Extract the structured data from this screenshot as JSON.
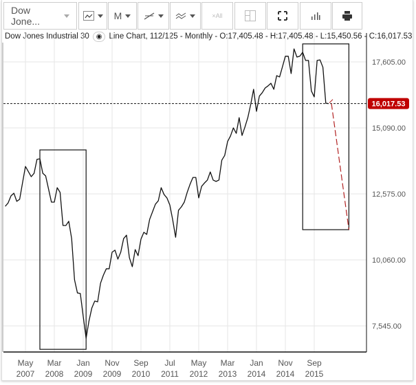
{
  "toolbar": {
    "symbol_select": "Dow Jone...",
    "chart_type_icon": "line-chart-icon",
    "period_select": "M",
    "drawing_tools_icon": "trendline-icon",
    "indicators_icon": "indicators-icon",
    "clear_all_label": "×All",
    "crosshair_icon": "crosshair-icon",
    "fullscreen_icon": "expand-icon",
    "volume_icon": "bar-chart-icon",
    "print_icon": "printer-icon"
  },
  "info": {
    "name": "Dow Jones Industrial 30",
    "eye_icon": "eye-icon",
    "details": "Line Chart, 112/125 - Monthly - O:17,405.48 - H:17,405.48 - L:15,450.56 - C:16,017.53"
  },
  "colors": {
    "line": "#111111",
    "projection": "#b22222",
    "price_badge": "#c00000",
    "grid": "#e6e6e6"
  },
  "chart_data": {
    "type": "line",
    "title": "",
    "xlabel": "",
    "ylabel": "",
    "x_ticks": [
      {
        "date": "2007-05",
        "label": [
          "May",
          "2007"
        ]
      },
      {
        "date": "2008-03",
        "label": [
          "Mar",
          "2008"
        ]
      },
      {
        "date": "2009-01",
        "label": [
          "Jan",
          "2009"
        ]
      },
      {
        "date": "2009-11",
        "label": [
          "Nov",
          "2009"
        ]
      },
      {
        "date": "2010-09",
        "label": [
          "Sep",
          "2010"
        ]
      },
      {
        "date": "2011-07",
        "label": [
          "Jul",
          "2011"
        ]
      },
      {
        "date": "2012-05",
        "label": [
          "May",
          "2012"
        ]
      },
      {
        "date": "2013-03",
        "label": [
          "Mar",
          "2013"
        ]
      },
      {
        "date": "2014-01",
        "label": [
          "Jan",
          "2014"
        ]
      },
      {
        "date": "2014-11",
        "label": [
          "Nov",
          "2014"
        ]
      },
      {
        "date": "2015-09",
        "label": [
          "Sep",
          "2015"
        ]
      }
    ],
    "y_ticks": [
      "17,605.00",
      "15,090.00",
      "12,575.00",
      "10,060.00",
      "7,545.00"
    ],
    "y_tick_values": [
      17605,
      15090,
      12575,
      10060,
      7545
    ],
    "ylim": [
      6550,
      18700
    ],
    "xlim": [
      "2006-10",
      "2017-03"
    ],
    "grid": true,
    "current_price": {
      "value": 16017.53,
      "label": "16,017.53"
    },
    "series": [
      {
        "points": [
          [
            "2006-10",
            12100
          ],
          [
            "2006-11",
            12230
          ],
          [
            "2006-12",
            12500
          ],
          [
            "2007-01",
            12600
          ],
          [
            "2007-02",
            12290
          ],
          [
            "2007-03",
            12370
          ],
          [
            "2007-04",
            13000
          ],
          [
            "2007-05",
            13620
          ],
          [
            "2007-07",
            13230
          ],
          [
            "2007-08",
            13360
          ],
          [
            "2007-09",
            13890
          ],
          [
            "2007-10",
            13910
          ],
          [
            "2007-11",
            13360
          ],
          [
            "2007-12",
            13260
          ],
          [
            "2008-01",
            12760
          ],
          [
            "2008-02",
            12260
          ],
          [
            "2008-03",
            12260
          ],
          [
            "2008-04",
            12810
          ],
          [
            "2008-05",
            12630
          ],
          [
            "2008-06",
            11370
          ],
          [
            "2008-07",
            11370
          ],
          [
            "2008-08",
            11530
          ],
          [
            "2008-09",
            10870
          ],
          [
            "2008-10",
            9300
          ],
          [
            "2008-11",
            8800
          ],
          [
            "2008-12",
            8780
          ],
          [
            "2009-01",
            7910
          ],
          [
            "2009-02",
            7070
          ],
          [
            "2009-03",
            7730
          ],
          [
            "2009-04",
            8230
          ],
          [
            "2009-05",
            8490
          ],
          [
            "2009-06",
            8460
          ],
          [
            "2009-07",
            9170
          ],
          [
            "2009-08",
            9480
          ],
          [
            "2009-09",
            9720
          ],
          [
            "2009-10",
            9720
          ],
          [
            "2009-11",
            10350
          ],
          [
            "2009-12",
            10430
          ],
          [
            "2010-01",
            10090
          ],
          [
            "2010-02",
            10350
          ],
          [
            "2010-03",
            10870
          ],
          [
            "2010-04",
            11000
          ],
          [
            "2010-05",
            10140
          ],
          [
            "2010-06",
            9800
          ],
          [
            "2010-07",
            10450
          ],
          [
            "2010-08",
            10220
          ],
          [
            "2010-09",
            10850
          ],
          [
            "2010-10",
            11110
          ],
          [
            "2010-11",
            11030
          ],
          [
            "2010-12",
            11600
          ],
          [
            "2011-01",
            11890
          ],
          [
            "2011-02",
            12180
          ],
          [
            "2011-03",
            12310
          ],
          [
            "2011-04",
            12810
          ],
          [
            "2011-05",
            12550
          ],
          [
            "2011-06",
            12420
          ],
          [
            "2011-07",
            12150
          ],
          [
            "2011-08",
            11580
          ],
          [
            "2011-09",
            10920
          ],
          [
            "2011-10",
            11950
          ],
          [
            "2011-11",
            12080
          ],
          [
            "2011-12",
            12260
          ],
          [
            "2012-01",
            12630
          ],
          [
            "2012-02",
            12940
          ],
          [
            "2012-03",
            13200
          ],
          [
            "2012-04",
            13200
          ],
          [
            "2012-05",
            12420
          ],
          [
            "2012-06",
            12860
          ],
          [
            "2012-07",
            12990
          ],
          [
            "2012-08",
            13100
          ],
          [
            "2012-09",
            13410
          ],
          [
            "2012-10",
            13100
          ],
          [
            "2012-11",
            13050
          ],
          [
            "2012-12",
            13100
          ],
          [
            "2013-01",
            13860
          ],
          [
            "2013-02",
            14040
          ],
          [
            "2013-03",
            14570
          ],
          [
            "2013-04",
            14780
          ],
          [
            "2013-05",
            15090
          ],
          [
            "2013-06",
            14880
          ],
          [
            "2013-07",
            15480
          ],
          [
            "2013-08",
            14800
          ],
          [
            "2013-09",
            15120
          ],
          [
            "2013-10",
            15480
          ],
          [
            "2013-11",
            15980
          ],
          [
            "2013-12",
            16560
          ],
          [
            "2014-01",
            15720
          ],
          [
            "2014-02",
            16300
          ],
          [
            "2014-03",
            16430
          ],
          [
            "2014-04",
            16610
          ],
          [
            "2014-05",
            16690
          ],
          [
            "2014-06",
            16790
          ],
          [
            "2014-07",
            16560
          ],
          [
            "2014-08",
            17080
          ],
          [
            "2014-09",
            17030
          ],
          [
            "2014-10",
            17420
          ],
          [
            "2014-11",
            17820
          ],
          [
            "2014-12",
            17820
          ],
          [
            "2015-01",
            17160
          ],
          [
            "2015-02",
            18100
          ],
          [
            "2015-03",
            17790
          ],
          [
            "2015-04",
            17820
          ],
          [
            "2015-05",
            17970
          ],
          [
            "2015-06",
            17660
          ],
          [
            "2015-07",
            17660
          ],
          [
            "2015-08",
            16500
          ],
          [
            "2015-09",
            16270
          ],
          [
            "2015-10",
            17660
          ],
          [
            "2015-11",
            17680
          ],
          [
            "2015-12",
            17400
          ],
          [
            "2016-01",
            16030
          ],
          [
            "2016-02",
            16017.53
          ]
        ]
      }
    ],
    "projection": [
      [
        "2016-02",
        16017.53
      ],
      [
        "2016-09",
        11210
      ]
    ],
    "annotations": [
      {
        "type": "rectangle",
        "from": [
          "2007-10",
          14250
        ],
        "to": [
          "2009-02",
          6650
        ]
      },
      {
        "type": "rectangle",
        "from": [
          "2015-05",
          18290
        ],
        "to": [
          "2016-09",
          11210
        ]
      }
    ]
  }
}
